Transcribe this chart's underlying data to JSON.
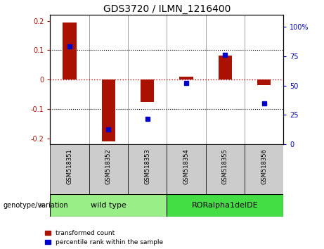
{
  "title": "GDS3720 / ILMN_1216400",
  "samples": [
    "GSM518351",
    "GSM518352",
    "GSM518353",
    "GSM518354",
    "GSM518355",
    "GSM518356"
  ],
  "red_values": [
    0.195,
    -0.21,
    -0.075,
    0.01,
    0.082,
    -0.018
  ],
  "blue_values_pct": [
    83,
    13,
    22,
    52,
    76,
    35
  ],
  "ylim_left": [
    -0.22,
    0.22
  ],
  "ylim_right": [
    0,
    110
  ],
  "yticks_left": [
    -0.2,
    -0.1,
    0.0,
    0.1,
    0.2
  ],
  "yticks_right": [
    0,
    25,
    50,
    75,
    100
  ],
  "ytick_labels_right": [
    "0",
    "25",
    "50",
    "75",
    "100%"
  ],
  "red_color": "#AA1100",
  "blue_color": "#0000CC",
  "zero_line_color": "#CC0000",
  "dotted_line_color": "#000000",
  "bar_width": 0.35,
  "group1_label": "wild type",
  "group2_label": "RORalpha1delDE",
  "group1_color": "#99EE88",
  "group2_color": "#44DD44",
  "sample_cell_color": "#CCCCCC",
  "legend_red": "transformed count",
  "legend_blue": "percentile rank within the sample",
  "genotype_label": "genotype/variation",
  "fig_width": 4.61,
  "fig_height": 3.54
}
